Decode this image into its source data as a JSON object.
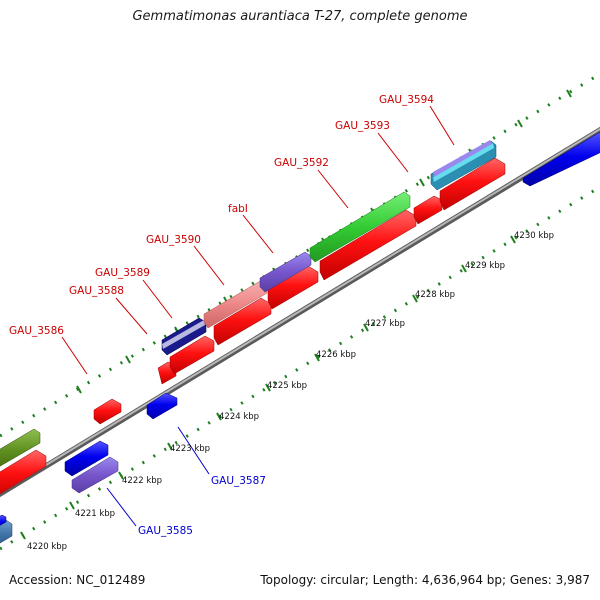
{
  "title": "Gemmatimonas aurantiaca T-27, complete genome",
  "accession": "Accession: NC_012489",
  "stats": "Topology: circular; Length: 4,636,964 bp; Genes: 3,987",
  "colors": {
    "forward_label": "#cc0000",
    "reverse_label": "#0000cc",
    "backbone": "#8c8c8c",
    "tick_dots": "#1f7f1f",
    "cds_red": "#ff0000",
    "cds_blue": "#0000ee",
    "cds_green": "#33cc33",
    "cds_purple": "#7755cc",
    "cds_pink": "#ee8888",
    "cds_olive": "#5f8f1f",
    "cds_teal": "#33aacc",
    "cds_steelblue": "#3f73a6"
  },
  "scale_labels": [
    "4220 kbp",
    "4221 kbp",
    "4222 kbp",
    "4223 kbp",
    "4224 kbp",
    "4225 kbp",
    "4226 kbp",
    "4227 kbp",
    "4228 kbp",
    "4229 kbp",
    "4230 kbp"
  ],
  "gene_labels": {
    "gau_3586": "GAU_3586",
    "gau_3588": "GAU_3588",
    "gau_3589": "GAU_3589",
    "gau_3590": "GAU_3590",
    "fabi": "fabI",
    "gau_3592": "GAU_3592",
    "gau_3593": "GAU_3593",
    "gau_3594": "GAU_3594",
    "gau_3587": "GAU_3587",
    "gau_3585": "GAU_3585"
  }
}
